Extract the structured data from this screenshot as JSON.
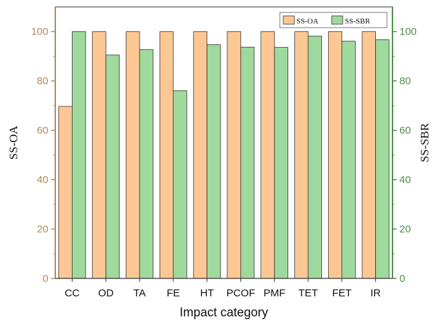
{
  "colors": {
    "ss_oa_fill": "#fdc794",
    "ss_sbr_fill": "#9fd99d",
    "bar_stroke": "#333333",
    "left_axis": "#b08a5e",
    "right_axis": "#4f8f4a",
    "frame": "#333333",
    "text": "#111111"
  },
  "chart_data": {
    "type": "bar",
    "xlabel": "Impact category",
    "ylabel_left": "SS-OA",
    "ylabel_right": "SS-SBR",
    "ylim": [
      0,
      110
    ],
    "yticks": [
      0,
      20,
      40,
      60,
      80,
      100
    ],
    "categories": [
      "CC",
      "OD",
      "TA",
      "FE",
      "HT",
      "PCOF",
      "PMF",
      "TET",
      "FET",
      "IR"
    ],
    "series": [
      {
        "name": "SS-OA",
        "axis": "left",
        "values": [
          69.7,
          100,
          100,
          100,
          100,
          100,
          100,
          100,
          100,
          100
        ]
      },
      {
        "name": "SS-SBR",
        "axis": "right",
        "values": [
          100,
          90.5,
          92.7,
          76.1,
          94.7,
          93.7,
          93.6,
          98.2,
          96.1,
          96.7
        ]
      }
    ],
    "legend_position": "top-right",
    "grid": false
  }
}
